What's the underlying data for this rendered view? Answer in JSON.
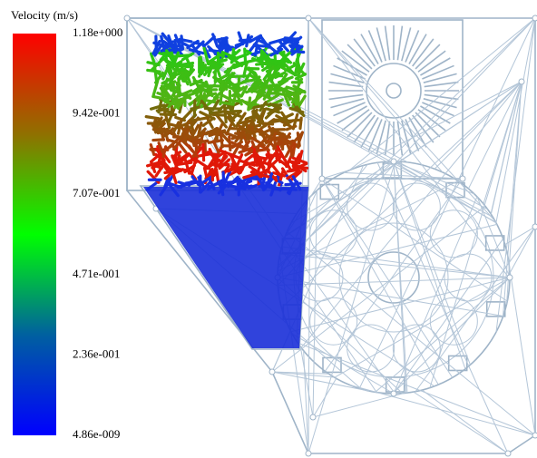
{
  "legend": {
    "title": "Velocity (m/s)",
    "ticks": [
      "1.18e+000",
      "9.42e-001",
      "7.07e-001",
      "4.71e-001",
      "2.36e-001",
      "4.86e-009"
    ]
  }
}
